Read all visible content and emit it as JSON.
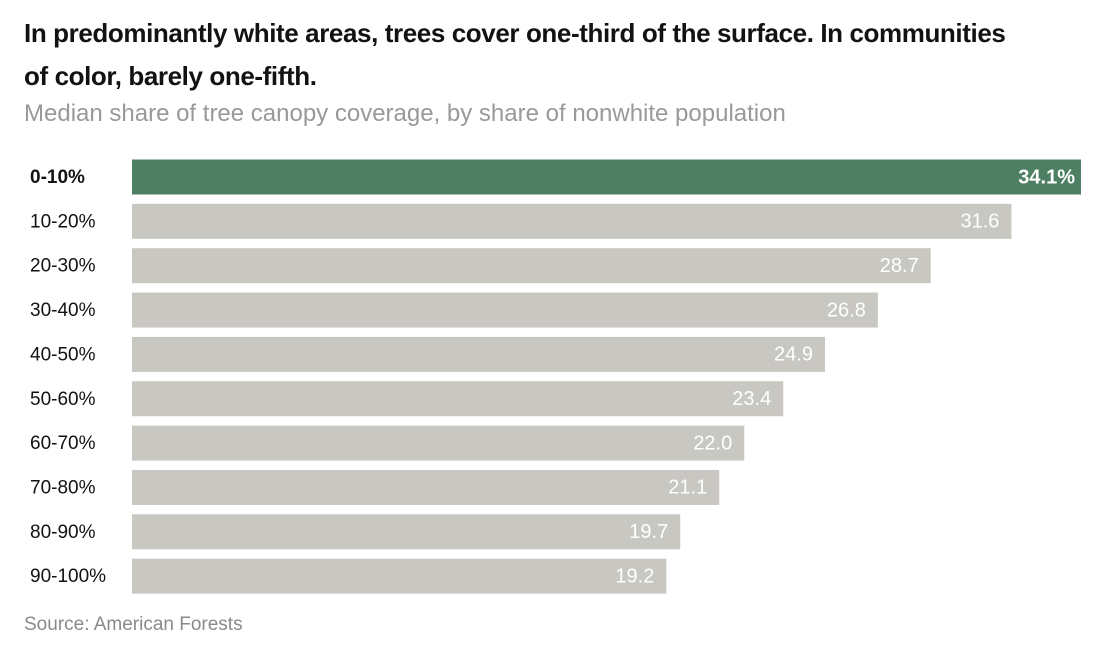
{
  "chart_data": {
    "type": "hbar",
    "title": "In predominantly white areas, trees cover one-third of the surface. In communities of color, barely one-fifth.",
    "subtitle": "Median share of tree canopy coverage, by share of nonwhite population",
    "source": "Source: American Forests",
    "categories": [
      "0-10%",
      "10-20%",
      "20-30%",
      "30-40%",
      "40-50%",
      "50-60%",
      "60-70%",
      "70-80%",
      "80-90%",
      "90-100%"
    ],
    "values": [
      34.1,
      31.6,
      28.7,
      26.8,
      24.9,
      23.4,
      22.0,
      21.1,
      19.7,
      19.2
    ],
    "value_labels": [
      "34.1%",
      "31.6",
      "28.7",
      "26.8",
      "24.9",
      "23.4",
      "22.0",
      "21.1",
      "19.7",
      "19.2"
    ],
    "color": "#c9c7c1",
    "highlight_color": "#4e7f63",
    "highlight_index": 0
  }
}
